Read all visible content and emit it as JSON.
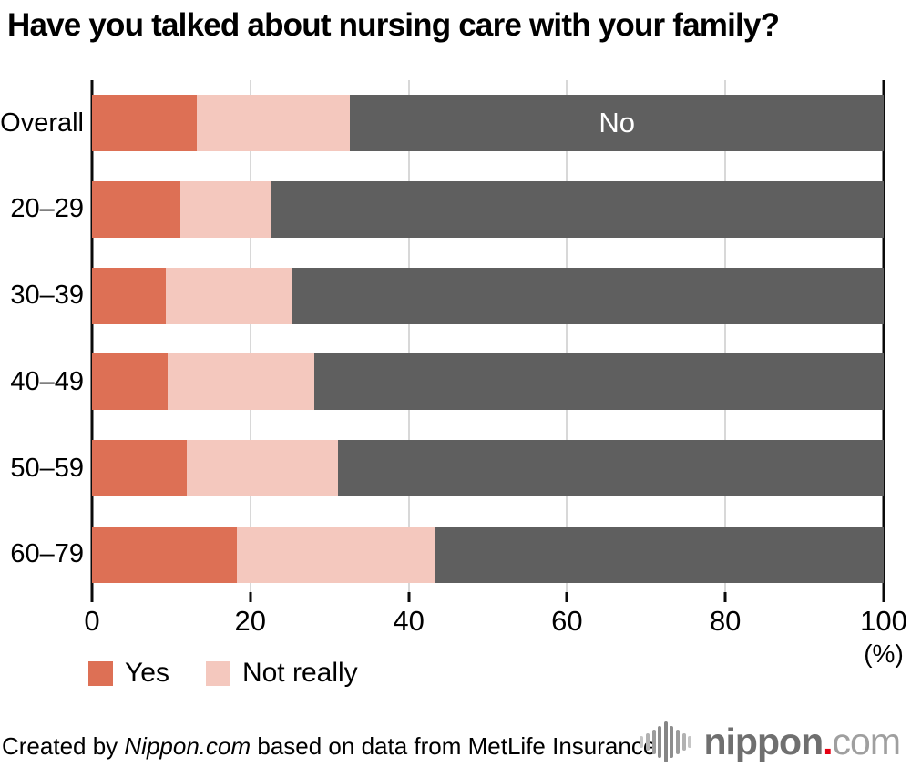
{
  "title": "Have you talked about nursing care with your family?",
  "chart_data": {
    "type": "bar",
    "orientation": "horizontal",
    "stacked": true,
    "title": "Have you talked about nursing care with your family?",
    "categories": [
      "Overall",
      "20–29",
      "30–39",
      "40–49",
      "50–59",
      "60–79"
    ],
    "series": [
      {
        "name": "Yes",
        "color": "#dd7055",
        "values": [
          13.2,
          11.2,
          9.3,
          9.6,
          12.0,
          18.3
        ]
      },
      {
        "name": "Not really",
        "color": "#f4c8be",
        "values": [
          19.4,
          11.3,
          16.0,
          18.5,
          19.1,
          25.0
        ]
      },
      {
        "name": "No",
        "color": "#5f5f5f",
        "values": [
          67.4,
          77.5,
          74.7,
          71.9,
          68.9,
          56.7
        ]
      }
    ],
    "bar_inline_label": {
      "text": "No",
      "row": "Overall",
      "series": "No"
    },
    "x_ticks": [
      0,
      20,
      40,
      60,
      80,
      100
    ],
    "x_unit": "(%)",
    "xlim": [
      0,
      100
    ],
    "grid": "vertical-light-gray",
    "legend_position": "bottom-left",
    "legend_entries": [
      "Yes",
      "Not really"
    ]
  },
  "legend": {
    "yes_label": "Yes",
    "not_really_label": "Not really"
  },
  "footer": {
    "credit_prefix": "Created by ",
    "credit_brand": "Nippon.com",
    "credit_suffix": " based on data from MetLife Insurance."
  },
  "logo": {
    "icon": "waveform-icon",
    "name": "nippon",
    "dot": ".",
    "tld": "com"
  },
  "colors": {
    "yes": "#dd7055",
    "not_really": "#f4c8be",
    "no": "#5f5f5f",
    "grid": "#d8d8d8",
    "axis": "#0a0a0a",
    "logo_name": "#6f6f6f",
    "logo_dot": "#e60012",
    "logo_tld": "#9f9f9f"
  }
}
